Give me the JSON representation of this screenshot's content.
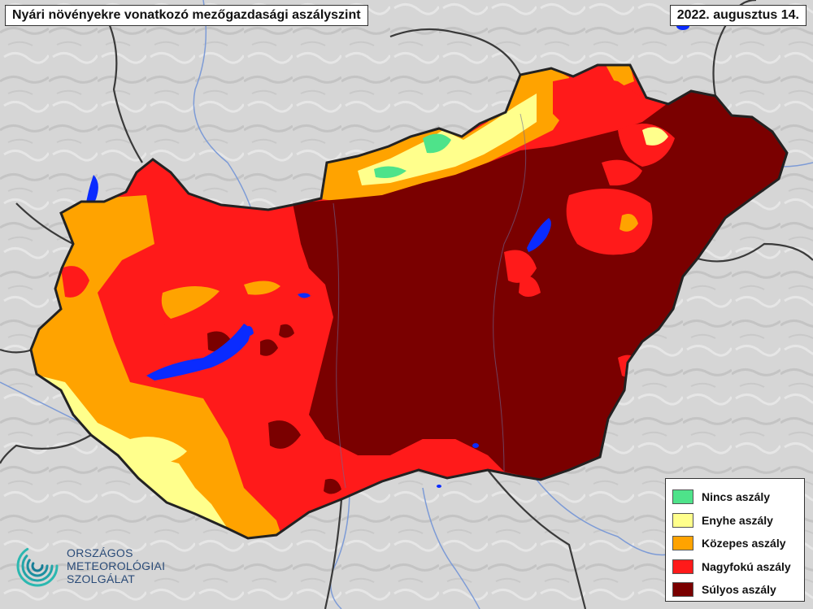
{
  "header": {
    "title": "Nyári növényekre vonatkozó mezőgazdasági aszályszint",
    "date": "2022. augusztus 14."
  },
  "legend": {
    "items": [
      {
        "label": "Nincs aszály",
        "color": "#4ee38a"
      },
      {
        "label": "Enyhe aszály",
        "color": "#ffff8c"
      },
      {
        "label": "Közepes aszály",
        "color": "#ffa300"
      },
      {
        "label": "Nagyfokú aszály",
        "color": "#ff1a1a"
      },
      {
        "label": "Súlyos aszály",
        "color": "#7a0000"
      }
    ]
  },
  "logo": {
    "lines": [
      "ORSZÁGOS",
      "METEOROLÓGIAI",
      "SZOLGÁLAT"
    ],
    "icon": "omsz-swirl-icon"
  },
  "colors": {
    "background_terrain": "#d8d8d8",
    "water": "#0a2bff",
    "border": "#333333",
    "river": "#6b8fd6"
  }
}
